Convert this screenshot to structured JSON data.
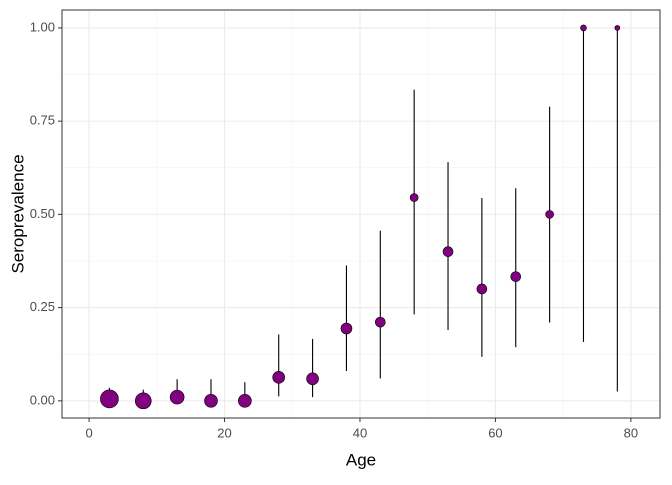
{
  "chart_data": {
    "type": "scatter",
    "x_label": "Age",
    "y_label": "Seroprevalence",
    "x": [
      3,
      8,
      13,
      18,
      23,
      28,
      33,
      38,
      43,
      48,
      53,
      58,
      63,
      68,
      73,
      78
    ],
    "values": [
      0.005,
      0.0,
      0.01,
      0.0,
      0.0,
      0.063,
      0.059,
      0.194,
      0.211,
      0.545,
      0.4,
      0.3,
      0.333,
      0.5,
      1.0,
      1.0
    ],
    "lower": [
      0.0,
      0.0,
      0.0,
      0.0,
      0.0,
      0.012,
      0.01,
      0.08,
      0.06,
      0.232,
      0.19,
      0.118,
      0.144,
      0.21,
      0.158,
      0.025
    ],
    "upper": [
      0.035,
      0.03,
      0.058,
      0.058,
      0.05,
      0.178,
      0.166,
      0.363,
      0.456,
      0.834,
      0.64,
      0.544,
      0.57,
      0.789,
      1.0,
      1.0
    ],
    "sizes": [
      9,
      8,
      7,
      6.5,
      6.5,
      6,
      6,
      5.5,
      5,
      4,
      5,
      5,
      5,
      4,
      3,
      2.5
    ],
    "color": "#800080",
    "xlim": [
      -4,
      84.3
    ],
    "xticks": [
      0,
      20,
      40,
      60,
      80
    ],
    "ylim": [
      -0.046,
      1.048
    ],
    "yticks": [
      {
        "value": 0,
        "label": "0.00"
      },
      {
        "value": 0.25,
        "label": "0.25"
      },
      {
        "value": 0.5,
        "label": "0.50"
      },
      {
        "value": 0.75,
        "label": "0.75"
      },
      {
        "value": 1,
        "label": "1.00"
      }
    ],
    "grid": true
  }
}
